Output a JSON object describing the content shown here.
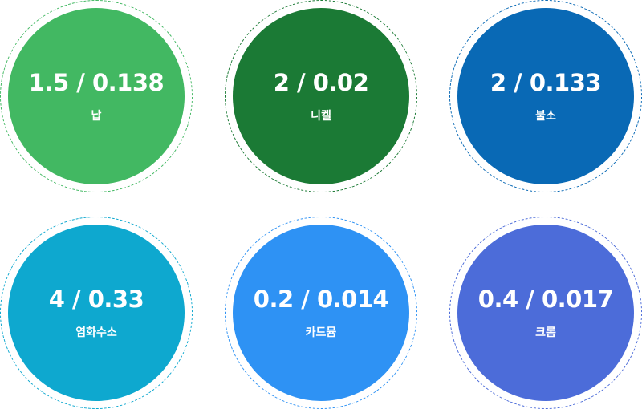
{
  "items": [
    {
      "value": "1.5 / 0.138",
      "name": "납",
      "fill": "#42b862",
      "ring": "#42b862"
    },
    {
      "value": "2 / 0.02",
      "name": "니켈",
      "fill": "#1b7a35",
      "ring": "#1b7a35"
    },
    {
      "value": "2 / 0.133",
      "name": "불소",
      "fill": "#0969b5",
      "ring": "#0969b5"
    },
    {
      "value": "4 / 0.33",
      "name": "염화수소",
      "fill": "#0ea8cf",
      "ring": "#0ea8cf"
    },
    {
      "value": "0.2 / 0.014",
      "name": "카드뮴",
      "fill": "#2e92f4",
      "ring": "#2e92f4"
    },
    {
      "value": "0.4 / 0.017",
      "name": "크롬",
      "fill": "#4c6cd9",
      "ring": "#4c6cd9"
    }
  ]
}
